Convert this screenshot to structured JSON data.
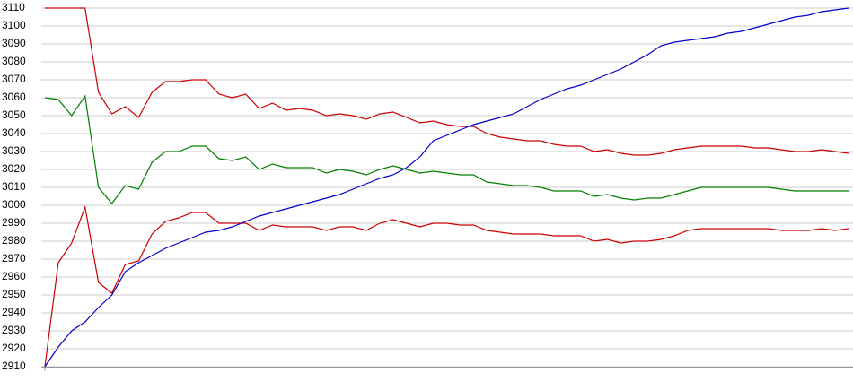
{
  "chart_data": {
    "type": "line",
    "ylim": [
      2910,
      3110
    ],
    "yticks": [
      2910,
      2920,
      2930,
      2940,
      2950,
      2960,
      2970,
      2980,
      2990,
      3000,
      3010,
      3020,
      3030,
      3040,
      3050,
      3060,
      3070,
      3080,
      3090,
      3100,
      3110
    ],
    "grid": true,
    "series": [
      {
        "color": "#cc0000",
        "values": [
          3110,
          3110,
          3110,
          3110,
          3063,
          3051,
          3055,
          3049,
          3063,
          3069,
          3069,
          3070,
          3070,
          3062,
          3060,
          3062,
          3054,
          3057,
          3053,
          3054,
          3053,
          3050,
          3051,
          3050,
          3048,
          3051,
          3052,
          3049,
          3046,
          3047,
          3045,
          3044,
          3044,
          3040,
          3038,
          3037,
          3036,
          3036,
          3034,
          3033,
          3033,
          3030,
          3031,
          3029,
          3028,
          3028,
          3029,
          3031,
          3032,
          3033,
          3033,
          3033,
          3033,
          3032,
          3032,
          3031,
          3030,
          3030,
          3031,
          3030,
          3029
        ]
      },
      {
        "color": "#008000",
        "values": [
          3060,
          3059,
          3050,
          3061,
          3010,
          3001,
          3011,
          3009,
          3024,
          3030,
          3030,
          3033,
          3033,
          3026,
          3025,
          3027,
          3020,
          3023,
          3021,
          3021,
          3021,
          3018,
          3020,
          3019,
          3017,
          3020,
          3022,
          3020,
          3018,
          3019,
          3018,
          3017,
          3017,
          3013,
          3012,
          3011,
          3011,
          3010,
          3008,
          3008,
          3008,
          3005,
          3006,
          3004,
          3003,
          3004,
          3004,
          3006,
          3008,
          3010,
          3010,
          3010,
          3010,
          3010,
          3010,
          3009,
          3008,
          3008,
          3008,
          3008,
          3008
        ]
      },
      {
        "color": "#cc0000",
        "values": [
          2910,
          2968,
          2979,
          2999,
          2957,
          2951,
          2967,
          2969,
          2984,
          2991,
          2993,
          2996,
          2996,
          2990,
          2990,
          2990,
          2986,
          2989,
          2988,
          2988,
          2988,
          2986,
          2988,
          2988,
          2986,
          2990,
          2992,
          2990,
          2988,
          2990,
          2990,
          2989,
          2989,
          2986,
          2985,
          2984,
          2984,
          2984,
          2983,
          2983,
          2983,
          2980,
          2981,
          2979,
          2980,
          2980,
          2981,
          2983,
          2986,
          2987,
          2987,
          2987,
          2987,
          2987,
          2987,
          2986,
          2986,
          2986,
          2987,
          2986,
          2987
        ]
      },
      {
        "color": "#0000cc",
        "values": [
          2910,
          2921,
          2930,
          2935,
          2943,
          2950,
          2963,
          2968,
          2972,
          2976,
          2979,
          2982,
          2985,
          2986,
          2988,
          2991,
          2994,
          2996,
          2998,
          3000,
          3002,
          3004,
          3006,
          3009,
          3012,
          3015,
          3017,
          3021,
          3027,
          3036,
          3039,
          3042,
          3045,
          3047,
          3049,
          3051,
          3055,
          3059,
          3062,
          3065,
          3067,
          3070,
          3073,
          3076,
          3080,
          3084,
          3089,
          3091,
          3092,
          3093,
          3094,
          3096,
          3097,
          3099,
          3101,
          3103,
          3105,
          3106,
          3108,
          3109,
          3110
        ]
      }
    ]
  }
}
